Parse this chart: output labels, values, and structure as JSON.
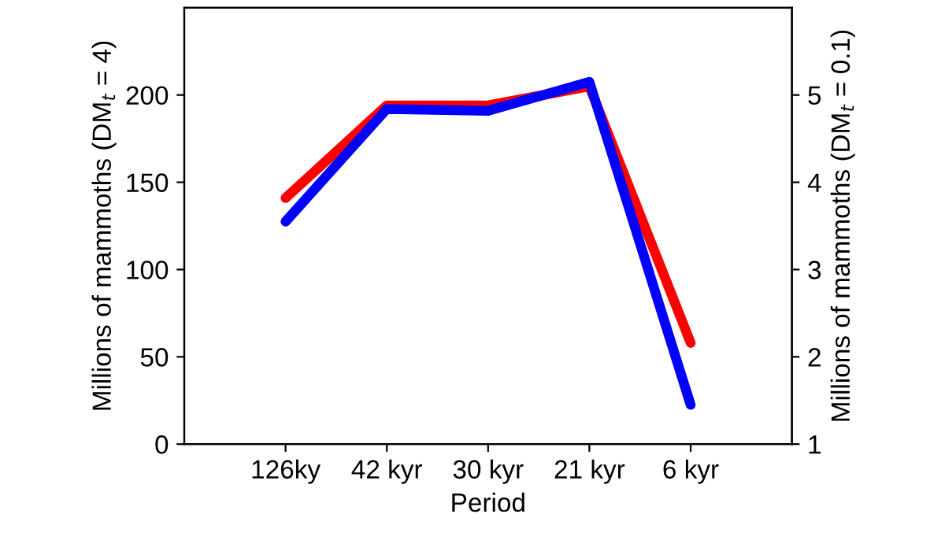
{
  "chart_data": {
    "type": "line",
    "xlabel": "Period",
    "ylabel": "Millions of mammoths (DM$_{t}$ = 4)",
    "y2label": "Millions of mammoths (DM$_{t}$ = 0.1)",
    "categories": [
      "126ky",
      "42 kyr",
      "30 kyr",
      "21 kyr",
      "6 kyr"
    ],
    "series": [
      {
        "color": "#ff0000",
        "values": [
          141,
          194,
          194,
          205,
          58
        ]
      },
      {
        "color": "#0000ff",
        "axis": "y2",
        "values": [
          3.55,
          4.84,
          4.82,
          5.15,
          1.45
        ]
      }
    ],
    "ylim": [
      0,
      250
    ],
    "yticks": [
      0,
      50,
      100,
      150,
      200
    ],
    "y2lim": [
      1,
      6
    ],
    "y2ticks": [
      1,
      2,
      3,
      4,
      5
    ],
    "grid": false,
    "legend": false,
    "marker": "none",
    "line_style": "solid"
  }
}
